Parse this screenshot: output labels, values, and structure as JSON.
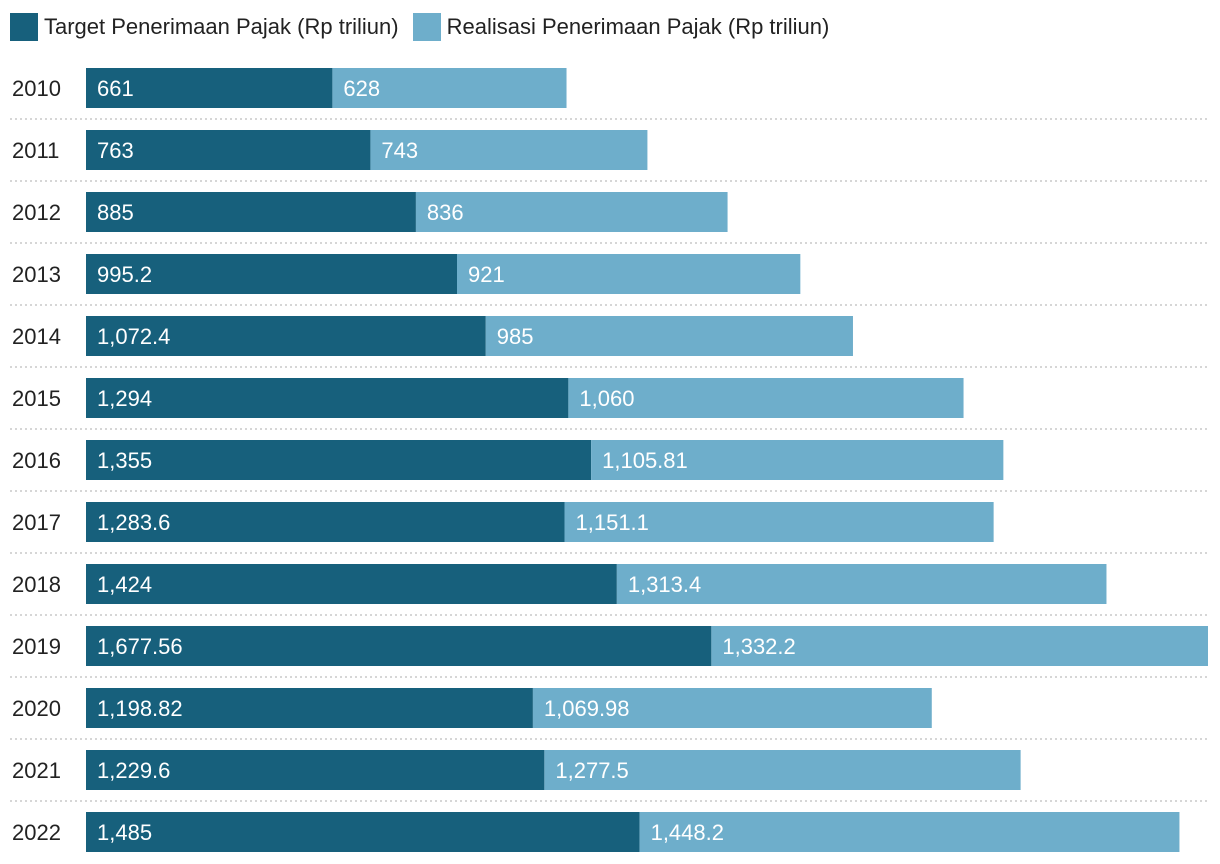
{
  "colors": {
    "target": "#17607c",
    "realisasi": "#6eaecb",
    "gridline": "#c8c8c8",
    "bar_label": "#ffffff",
    "category_label": "#222222"
  },
  "chart_data": {
    "type": "bar",
    "orientation": "horizontal",
    "stacked": true,
    "categories": [
      "2010",
      "2011",
      "2012",
      "2013",
      "2014",
      "2015",
      "2016",
      "2017",
      "2018",
      "2019",
      "2020",
      "2021",
      "2022"
    ],
    "series": [
      {
        "name": "Target Penerimaan Pajak (Rp triliun)",
        "values": [
          661,
          763,
          885,
          995.2,
          1072.4,
          1294,
          1355,
          1283.6,
          1424,
          1677.56,
          1198.82,
          1229.6,
          1485
        ],
        "labels": [
          "661",
          "763",
          "885",
          "995.2",
          "1,072.4",
          "1,294",
          "1,355",
          "1,283.6",
          "1,424",
          "1,677.56",
          "1,198.82",
          "1,229.6",
          "1,485"
        ]
      },
      {
        "name": "Realisasi Penerimaan Pajak (Rp triliun)",
        "values": [
          628,
          743,
          836,
          921,
          985,
          1060,
          1105.81,
          1151.1,
          1313.4,
          1332.2,
          1069.98,
          1277.5,
          1448.2
        ],
        "labels": [
          "628",
          "743",
          "836",
          "921",
          "985",
          "1,060",
          "1,105.81",
          "1,151.1",
          "1,313.4",
          "1,332.2",
          "1,069.98",
          "1,277.5",
          "1,448.2"
        ]
      }
    ],
    "legend_position": "top-left",
    "grid": "dotted horizontal separators",
    "xlim": [
      0,
      3009.76
    ]
  }
}
